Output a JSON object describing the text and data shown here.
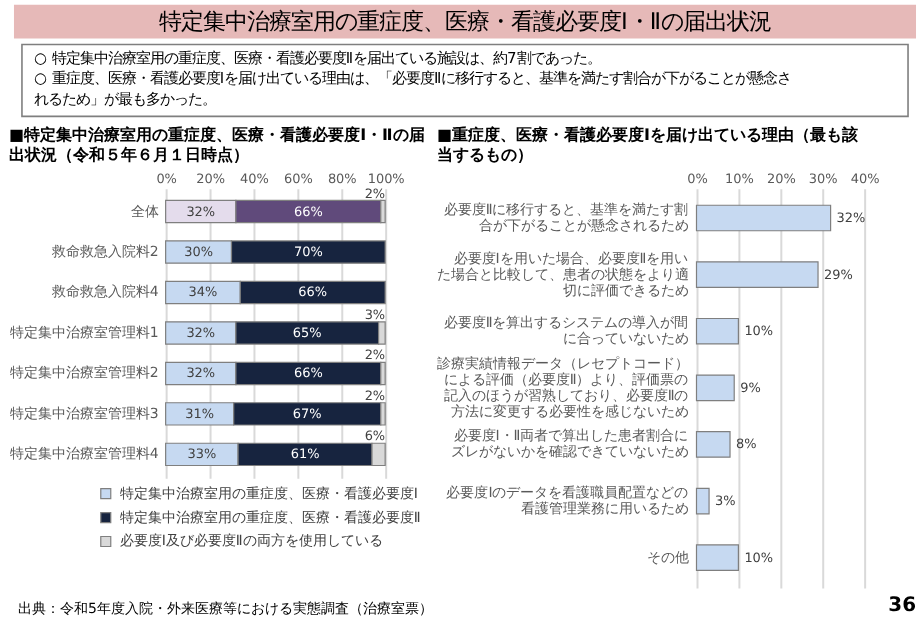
{
  "chart_data": [
    {
      "type": "bar",
      "orientation": "horizontal",
      "stacked": true,
      "title": "■特定集中治療室用の重症度、医療・看護必要度Ⅰ・Ⅱの届出状況（令和５年６月１日時点）",
      "annotations": [
        "特定集中治療室用の重症度、医療・看護必要度Ⅰ・Ⅱの届出状況",
        "○ 特定集中治療室用の重症度、医療・看護必要度Ⅱを届出ている施設は、約7割であった。",
        "○ 重症度、医療・看護必要度Ⅰを届け出ている理由は、「必要度Ⅱに移行すると、基準を満たす割合が下がることが懸念されるため」が最も多かった。",
        "出典：令和5年度入院・外来医療等における実態調査（治療室票）",
        "36"
      ],
      "categories": [
        "全体",
        "救命救急入院料2",
        "救命救急入院料4",
        "特定集中治療室管理料1",
        "特定集中治療室管理料2",
        "特定集中治療室管理料3",
        "特定集中治療室管理料4"
      ],
      "series": [
        {
          "name": "特定集中治療室用の重症度、医療・看護必要度Ⅰ",
          "color": "#c6d9f1",
          "colors": [
            "#e4dcec",
            "#c6d9f1",
            "#c6d9f1",
            "#c6d9f1",
            "#c6d9f1",
            "#c6d9f1",
            "#c6d9f1"
          ],
          "values": [
            32,
            30,
            34,
            32,
            32,
            31,
            33
          ],
          "value_labels": [
            "32%",
            "30%",
            "34%",
            "32%",
            "32%",
            "31%",
            "33%"
          ]
        },
        {
          "name": "特定集中治療室用の重症度、医療・看護必要度Ⅱ",
          "color": "#17243f",
          "colors": [
            "#604a7b",
            "#17243f",
            "#17243f",
            "#17243f",
            "#17243f",
            "#17243f",
            "#17243f"
          ],
          "values": [
            66,
            70,
            66,
            65,
            66,
            67,
            61
          ],
          "value_labels": [
            "66%",
            "70%",
            "66%",
            "65%",
            "66%",
            "67%",
            "61%"
          ]
        },
        {
          "name": "必要度Ⅰ及び必要度Ⅱの両方を使用している",
          "color": "#d9d9d9",
          "values": [
            2,
            0,
            0,
            3,
            2,
            2,
            6
          ],
          "value_labels": [
            "2%",
            null,
            null,
            "3%",
            "2%",
            "2%",
            "6%"
          ]
        }
      ],
      "xlim": [
        0,
        100
      ],
      "xticks": [
        {
          "value": 0,
          "label": "0%"
        },
        {
          "value": 20,
          "label": "20%"
        },
        {
          "value": 40,
          "label": "40%"
        },
        {
          "value": 60,
          "label": "60%"
        },
        {
          "value": 80,
          "label": "80%"
        },
        {
          "value": 100,
          "label": "100%"
        }
      ],
      "grid": "x",
      "legend": "bottom"
    },
    {
      "type": "bar",
      "orientation": "horizontal",
      "title": "■重症度、医療・看護必要度Ⅰを届け出ている理由（最も該当するもの）",
      "categories": [
        "必要度Ⅱに移行すると、基準を満たす割合が下がることが懸念されるため",
        "必要度Ⅰを用いた場合、必要度Ⅱを用いた場合と比較して、患者の状態をより適切に評価できるため",
        "必要度Ⅱを算出するシステムの導入が間に合っていないため",
        "診療実績情報データ（レセプトコード）による評価（必要度Ⅱ）より、評価票の記入のほうが習熟しており、必要度Ⅱの方法に変更する必要性を感じないため",
        "必要度Ⅰ・Ⅱ両者で算出した患者割合にズレがないかを確認できていないため",
        "必要度Ⅰのデータを看護職員配置などの看護管理業務に用いるため",
        "その他"
      ],
      "values": [
        32,
        29,
        10,
        9,
        8,
        3,
        10
      ],
      "value_labels": [
        "32%",
        "29%",
        "10%",
        "9%",
        "8%",
        "3%",
        "10%"
      ],
      "color": "#c6d9f1",
      "xlim": [
        0,
        40
      ],
      "xticks": [
        {
          "value": 0,
          "label": "0%"
        },
        {
          "value": 10,
          "label": "10%"
        },
        {
          "value": 20,
          "label": "20%"
        },
        {
          "value": 30,
          "label": "30%"
        },
        {
          "value": 40,
          "label": "40%"
        }
      ],
      "grid": "x"
    }
  ]
}
